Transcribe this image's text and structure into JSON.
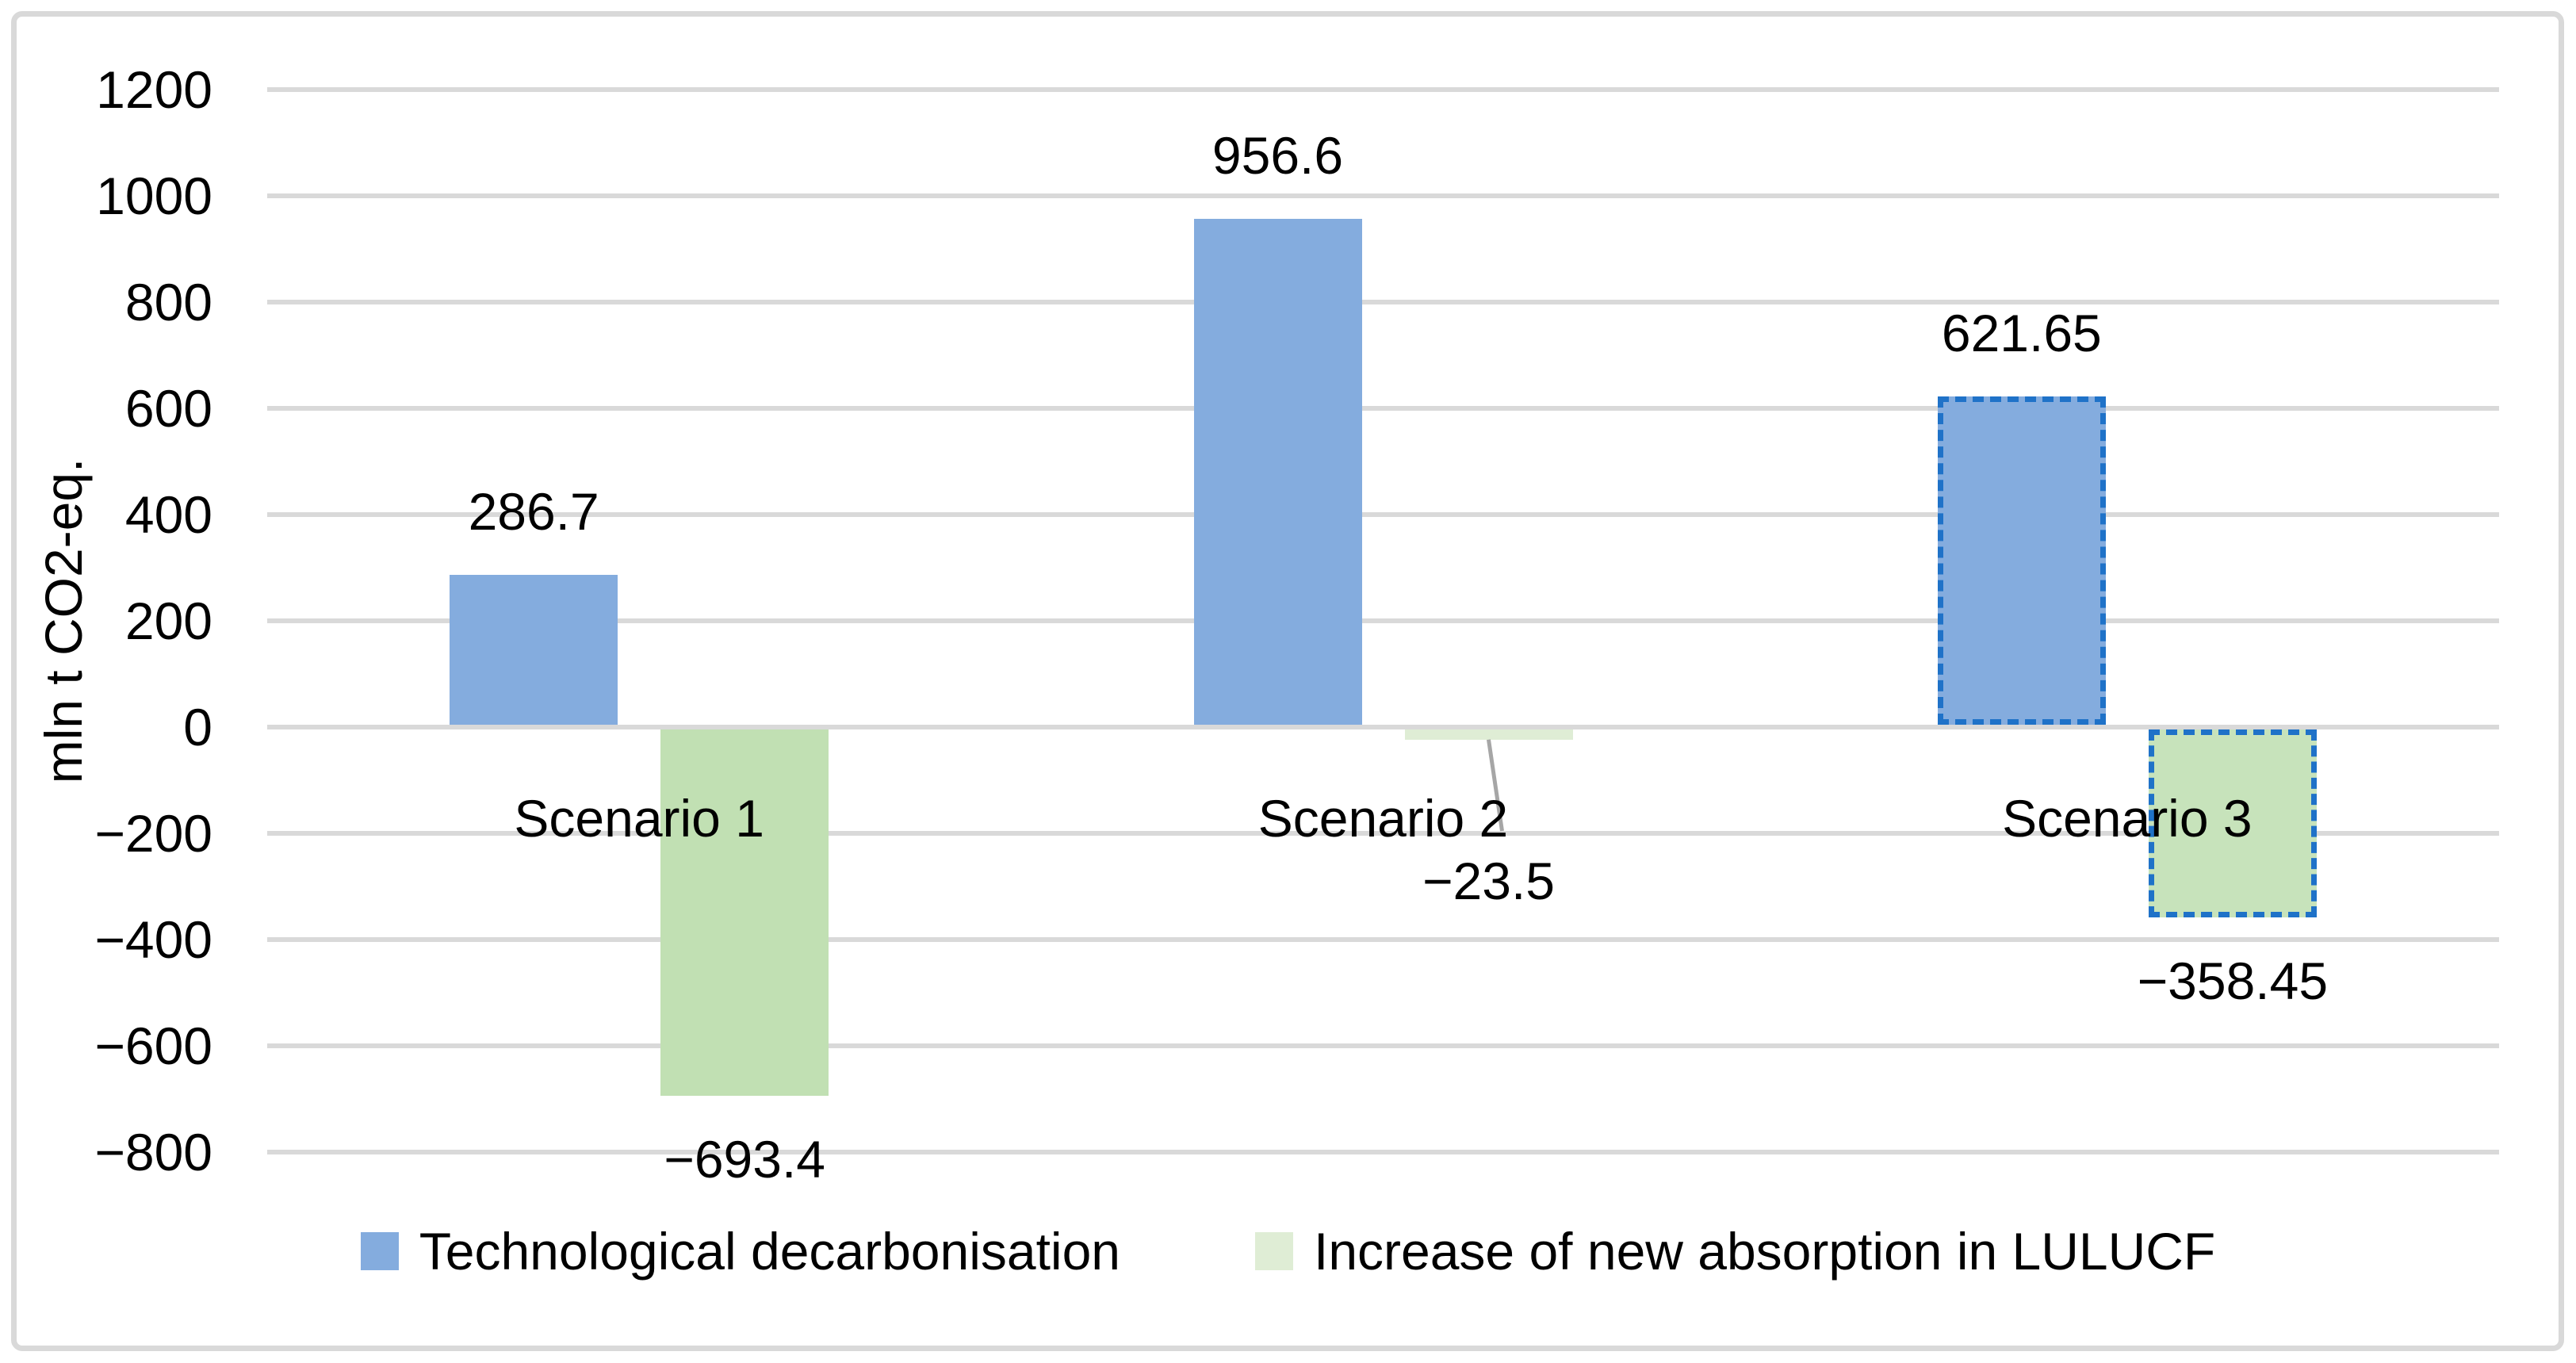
{
  "chart_data": {
    "type": "bar",
    "title": "",
    "ylabel": "mln t CO2-eq.",
    "ylim": [
      -800,
      1200
    ],
    "ytick_step": 200,
    "ytick_labels": [
      "1200",
      "1000",
      "800",
      "600",
      "400",
      "200",
      "0",
      "−200",
      "−400",
      "−600",
      "−800"
    ],
    "categories": [
      "Scenario 1",
      "Scenario 2",
      "Scenario 3"
    ],
    "series": [
      {
        "name": "Technological decarbonisation",
        "fill": "#84ACDE",
        "legend_fill": "#84ACDE",
        "values": [
          286.7,
          956.6,
          621.65
        ],
        "labels": [
          "286.7",
          "956.6",
          "621.65"
        ]
      },
      {
        "name": "Increase of new absorption in LULUCF",
        "fill": "#C3E1B5",
        "legend_fill": "#DFEDD5",
        "point_fills": [
          "#C1E0B3",
          "#DFEDD5",
          "#C7E3BB"
        ],
        "values": [
          -693.4,
          -23.5,
          -358.45
        ],
        "labels": [
          "−693.4",
          "−23.5",
          "−358.45"
        ]
      }
    ],
    "highlight": {
      "category_index": 2,
      "style": "dashed-border",
      "border_color": "#1F72C8"
    },
    "leader_line": {
      "series_index": 1,
      "category_index": 1,
      "color": "#A6A6A6"
    },
    "grid": true,
    "gridline_color": "#D9D9D9",
    "frame_border_color": "#D9D9D9",
    "background": "#FFFFFF",
    "text_color": "#000000",
    "legend_position": "bottom"
  }
}
